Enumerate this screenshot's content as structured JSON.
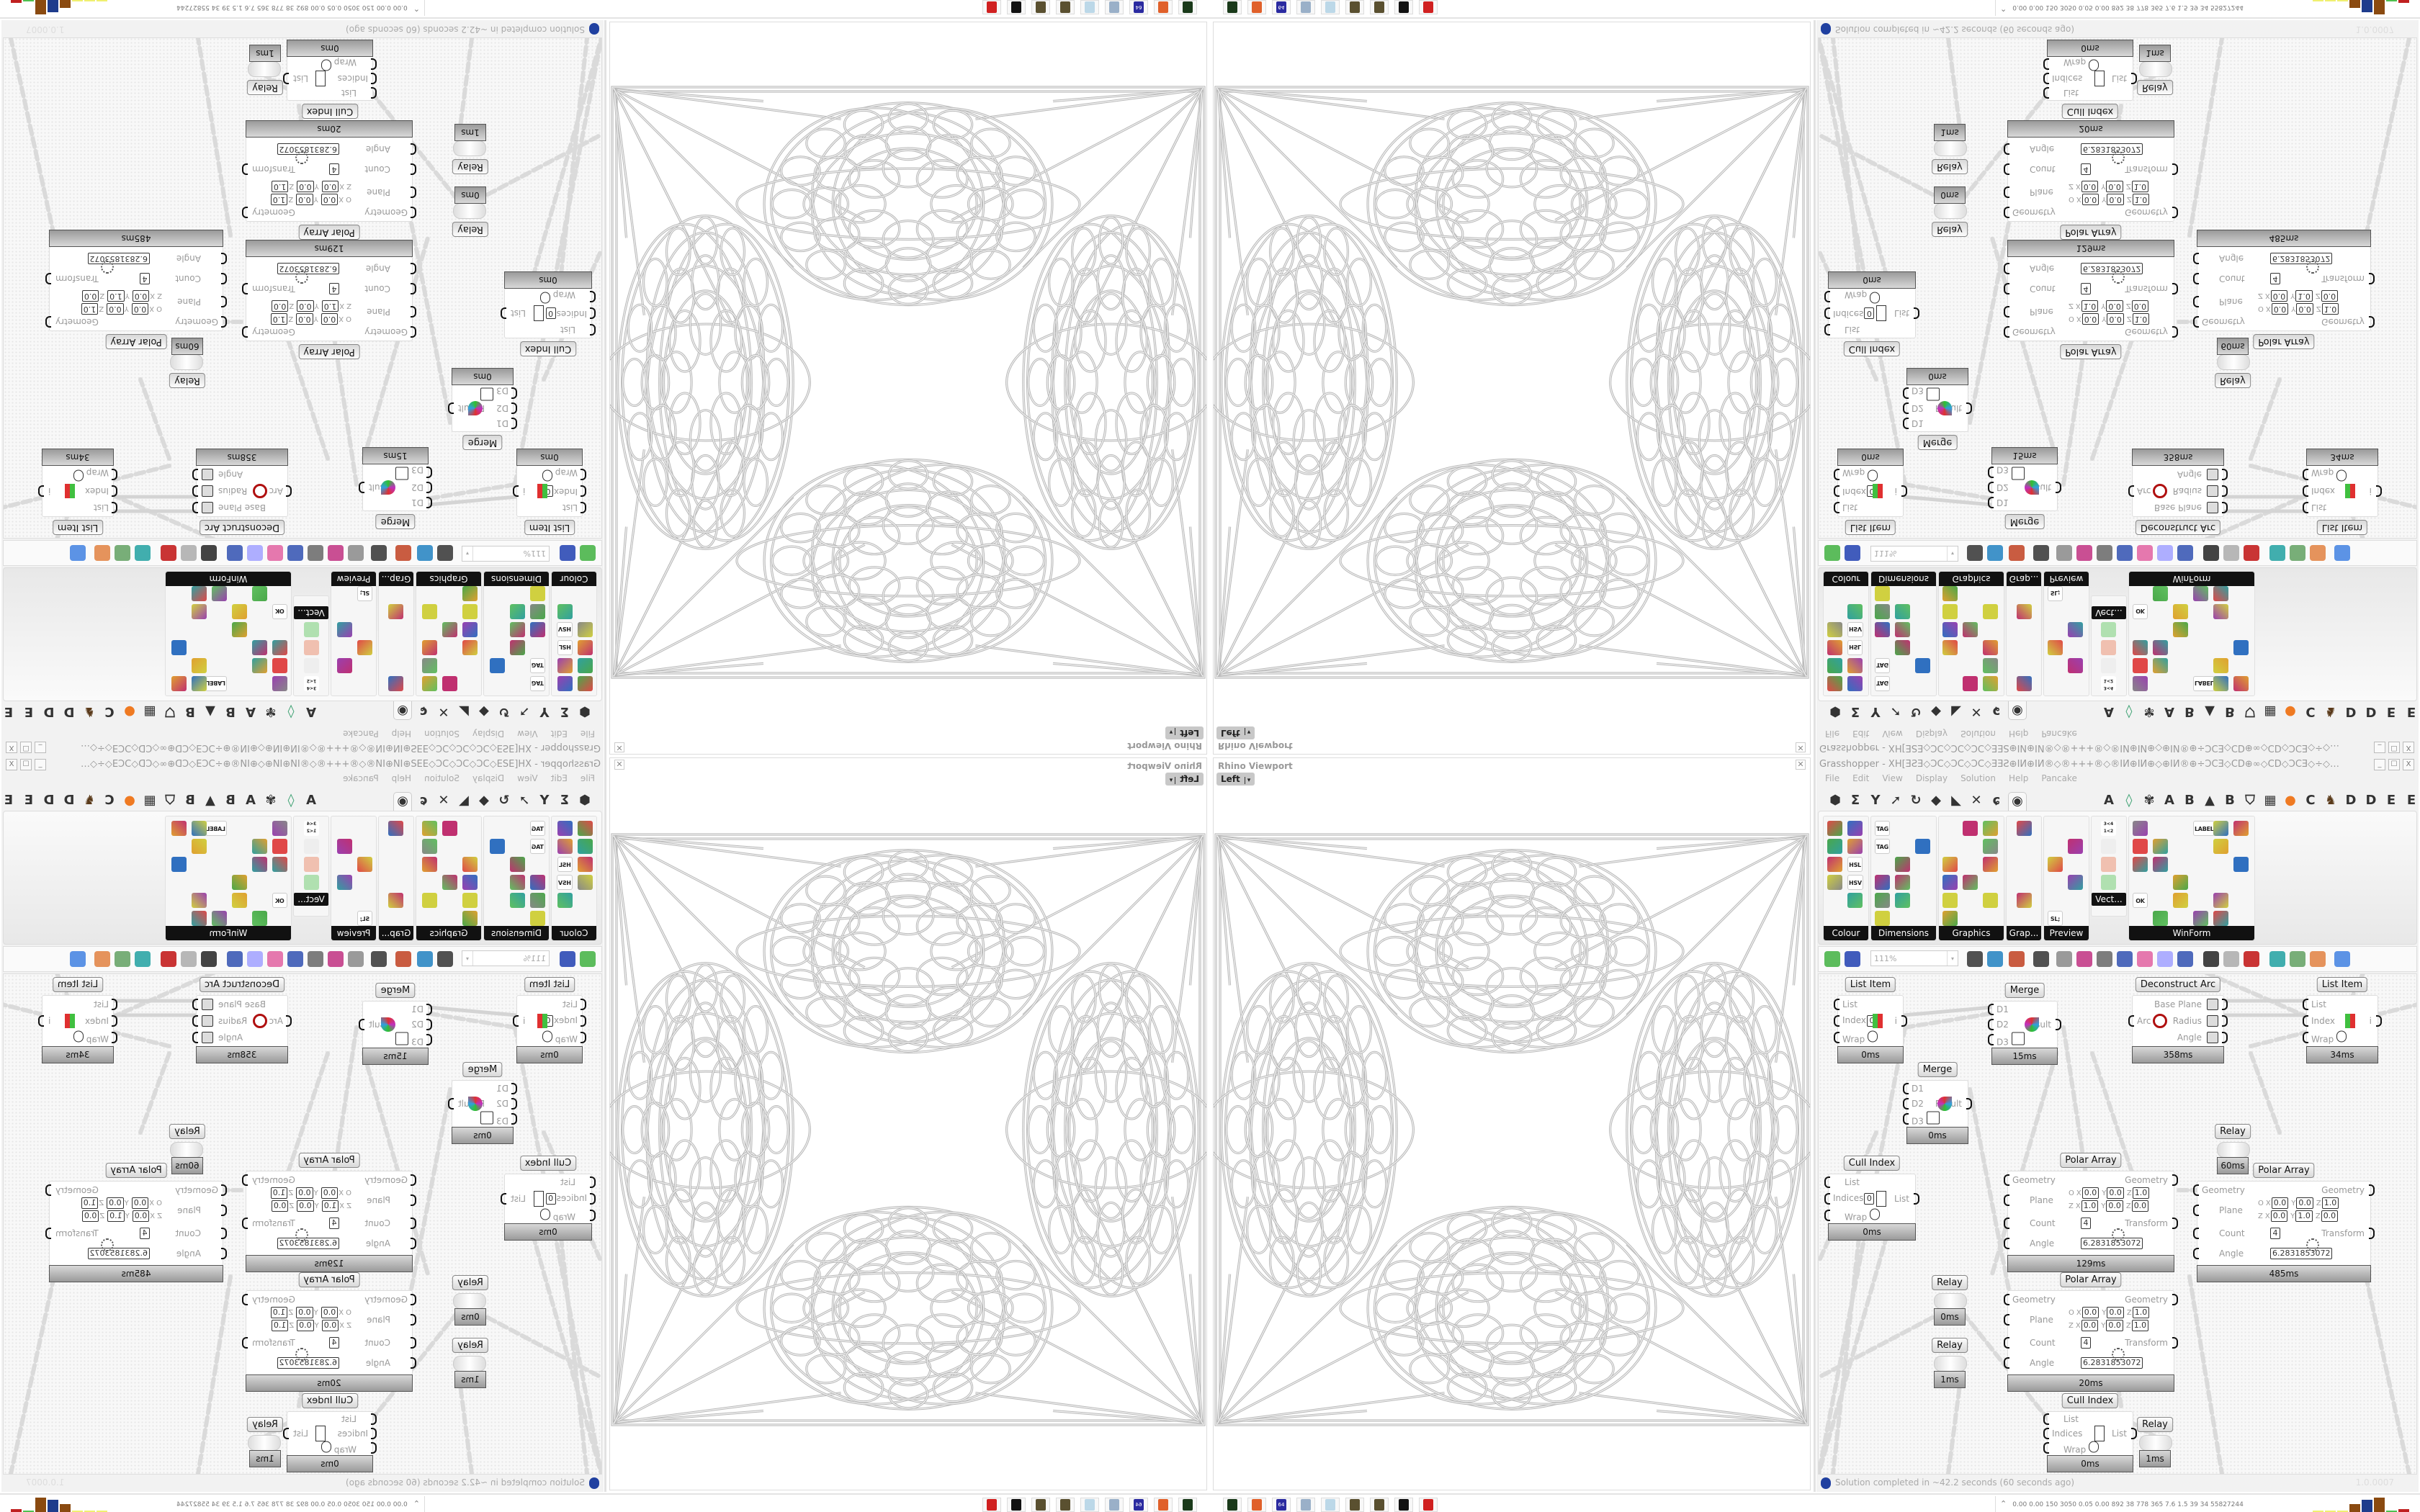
{
  "viewport": {
    "title": "Rhino Viewport",
    "view": "Left",
    "close": "✕",
    "view_arrow": "▾"
  },
  "grasshopper": {
    "title": "Grasshopper - XH[ƎƧƎ◇ƆC◇ƆC◇ƆC◇ƎƎƧ⊕IИ⊕IИ®◇®+++®◇®IИ⊕IИ⊕◇⊕IИ®⊕÷ƆCƎ◇CD⊕∞◇CD◇ƆCƎ◇÷◇®IИ÷◇⊕ƎƎƎ⊞÷ƧƧ÷⊞ƎƎ⊕◇⊕◇CDƎƎ⊞÷C...",
    "window_buttons": [
      "_",
      "☐",
      "X"
    ],
    "menu": [
      "File",
      "Edit",
      "View",
      "Display",
      "Solution",
      "Help",
      "Pancake"
    ],
    "tabs": [
      {
        "icon": "hexagon-icon",
        "glyph": "⬢"
      },
      {
        "icon": "sigma-icon",
        "glyph": "Σ"
      },
      {
        "icon": "fork-icon",
        "glyph": "Y"
      },
      {
        "icon": "arrow-icon",
        "glyph": "➚"
      },
      {
        "icon": "hook-icon",
        "glyph": "↻"
      },
      {
        "icon": "polygon-icon",
        "glyph": "◆"
      },
      {
        "icon": "vector-icon",
        "glyph": "◣"
      },
      {
        "icon": "intersect-icon",
        "glyph": "✕"
      },
      {
        "icon": "spiral-icon",
        "glyph": "ɕ"
      },
      {
        "icon": "eye-icon",
        "glyph": "◉",
        "active": true
      },
      {
        "letter": "A"
      },
      {
        "icon": "crystal-icon",
        "glyph": "◊",
        "color": "#3aa070"
      },
      {
        "icon": "gear-icon",
        "glyph": "✾"
      },
      {
        "letter": "A"
      },
      {
        "letter": "B"
      },
      {
        "icon": "mountain-icon",
        "glyph": "▲"
      },
      {
        "letter": "B"
      },
      {
        "icon": "shield-icon",
        "glyph": "⛉"
      },
      {
        "icon": "grid-icon",
        "glyph": "▦"
      },
      {
        "icon": "orange-circle-icon",
        "glyph": "●",
        "color": "#ef7a22"
      },
      {
        "letter": "C"
      },
      {
        "icon": "bird-icon",
        "glyph": "♞",
        "color": "#5a3a1a"
      },
      {
        "letter": "D"
      },
      {
        "letter": "D"
      },
      {
        "letter": "E"
      },
      {
        "letter": "E"
      },
      {
        "icon": "dotted-square-icon",
        "glyph": "▣"
      },
      {
        "letter": "E"
      }
    ],
    "ribbon": [
      {
        "label": "Colour",
        "cols": 2,
        "icons": [
          "colour-wheel",
          "gradient",
          "cube-red",
          "swatch-gradient",
          "cube-green",
          "HSL",
          "sphere-red",
          "HSV",
          "sphere-red-small",
          "prism",
          "colour-gradient"
        ]
      },
      {
        "label": "Dimensions",
        "cols": 3,
        "icons": [
          "TAG",
          "dimension",
          "angle-dim",
          "TAG",
          "pencil",
          "box-dim",
          "magenta-swatch",
          "fork-dim",
          "bracket-dim",
          "grid-dim",
          "angle-dim-2",
          "leader",
          "segment",
          "chain",
          "arrow-dim",
          "line-dim",
          "triangle-dim"
        ]
      },
      {
        "label": "Graphics",
        "cols": 3,
        "icons": [
          "circle-grey",
          "T-circle",
          "eye-circle",
          "dotted-circle",
          "T-black",
          "square-circle",
          "blur-dot",
          "list-circle",
          "asterisk-circle",
          "ring",
          "link-circle",
          "floppy-mountain",
          "sphere-grey",
          "dotted-ring",
          "floppy-star",
          "gradient-circle",
          "mountain-circle"
        ]
      },
      {
        "label": "Grap...",
        "cols": 1,
        "icons": [
          "histogram",
          "bar-legend",
          "pie-ring",
          "line-graph",
          "photo-stack",
          "area-graph"
        ]
      },
      {
        "label": "Preview",
        "cols": 2,
        "icons": [
          "orange-egg",
          "camera",
          "sphere-window",
          "trees",
          "blue-blobs",
          "blue-heart",
          "red-blobs",
          "green-heart",
          "gradient-slash",
          "hearts",
          "SL;",
          "tree-image"
        ]
      },
      {
        "label": "WinForm",
        "cols": 6,
        "icons": [
          "big-A",
          "list-form",
          "text-form",
          "LABEL",
          "chart-form",
          "grid-form",
          "hatch",
          "track",
          "slider",
          "green-grid",
          "face",
          "panels",
          "check",
          "text-lines",
          "tree-form",
          "pie-form",
          "person",
          "A-plus",
          "bar-form",
          "spinner",
          "packages",
          "arrows",
          "big-A-green",
          "",
          "OK",
          "toggle",
          "green-bar",
          "list-lines",
          "green-window",
          "",
          "calendar",
          "vslider",
          "battery",
          "bars",
          "arrow-right"
        ]
      }
    ],
    "vector_panel": {
      "label": "Vect...",
      "icons": [
        "sort-numbers",
        "path-arrows",
        "red-arrows",
        "green-arrows"
      ],
      "sort_text": "3<4 1<2"
    },
    "toolbar": {
      "zoom": "111%",
      "zoom_arrow": "▾",
      "icons": [
        "new-file-icon",
        "save-icon",
        "zoom-extents-icon",
        "eye-preview-icon",
        "sketch-icon",
        "plug-icon",
        "email-icon",
        "gha-icon",
        "window-icon",
        "search-icon",
        "package-icon",
        "bulb-icon",
        "wires-icon",
        "hand-icon",
        "outline-icon",
        "red-gem-icon",
        "teal-icon",
        "green-icon",
        "half-sphere-icon",
        "blue-sphere-icon"
      ]
    },
    "nodes": [
      {
        "title": "List Item",
        "inputs": [
          "List",
          "Index",
          "Wrap"
        ],
        "index_value": "0",
        "outputs": [
          "i"
        ],
        "timing": "0ms"
      },
      {
        "title": "Merge",
        "inputs": [
          "D1",
          "D2",
          "D3"
        ],
        "outputs": [
          "Result"
        ],
        "timing": "15ms"
      },
      {
        "title": "Deconstruct Arc",
        "inputs": [
          "Arc"
        ],
        "outputs": [
          "Base Plane",
          "Radius",
          "Angle"
        ],
        "timing": "358ms"
      },
      {
        "title": "List Item",
        "inputs": [
          "List",
          "Index",
          "Wrap"
        ],
        "outputs": [
          "i"
        ],
        "timing": "34ms"
      },
      {
        "title": "Merge",
        "inputs": [
          "D1",
          "D2",
          "D3"
        ],
        "outputs": [
          "Result"
        ],
        "timing": "0ms"
      },
      {
        "title": "Relay",
        "timing": "60ms"
      },
      {
        "title": "Cull Index",
        "inputs": [
          "List",
          "Indices",
          "Wrap"
        ],
        "index_value": "0",
        "outputs": [
          "List"
        ],
        "timing": "0ms"
      },
      {
        "title": "Polar Array",
        "inputs": [
          "Geometry",
          "Plane",
          "Count",
          "Angle"
        ],
        "outputs": [
          "Geometry",
          "Transform"
        ],
        "plane": {
          "o": [
            "0.0",
            "0.0",
            "1.0"
          ],
          "z": [
            "1.0",
            "0.0",
            "0.0"
          ]
        },
        "count": "4",
        "angle": "6.2831853072",
        "timing": "129ms"
      },
      {
        "title": "Polar Array",
        "inputs": [
          "Geometry",
          "Plane",
          "Count",
          "Angle"
        ],
        "outputs": [
          "Geometry",
          "Transform"
        ],
        "plane": {
          "o": [
            "0.0",
            "0.0",
            "1.0"
          ],
          "z": [
            "0.0",
            "1.0",
            "0.0"
          ]
        },
        "count": "4",
        "angle": "6.2831853072",
        "timing": "485ms"
      },
      {
        "title": "Relay",
        "timing": "0ms"
      },
      {
        "title": "Polar Array",
        "inputs": [
          "Geometry",
          "Plane",
          "Count",
          "Angle"
        ],
        "outputs": [
          "Geometry",
          "Transform"
        ],
        "plane": {
          "o": [
            "0.0",
            "0.0",
            "1.0"
          ],
          "z": [
            "0.0",
            "0.0",
            "1.0"
          ]
        },
        "count": "4",
        "angle": "6.2831853072",
        "timing": "20ms"
      },
      {
        "title": "Relay",
        "timing": "1ms"
      },
      {
        "title": "Cull Index",
        "inputs": [
          "List",
          "Indices",
          "Wrap"
        ],
        "outputs": [
          "List"
        ],
        "timing": "0ms"
      },
      {
        "title": "Relay",
        "timing": "1ms"
      }
    ],
    "plane_axis": {
      "o": "O",
      "z": "Z",
      "x": "X",
      "y": "Y",
      "zc": "Z"
    },
    "status": {
      "message": "Solution completed in ~42.2 seconds (60 seconds ago)",
      "version": "1.0.0007",
      "icon": "info-icon"
    }
  },
  "taskbar": {
    "apps": [
      {
        "icon": "terminal-app-icon",
        "color": "#1a3a1a"
      },
      {
        "icon": "firefox-icon",
        "color": "#e0602a"
      },
      {
        "icon": "floppy-64-icon",
        "color": "#2a2aa0",
        "label": "64"
      },
      {
        "icon": "scroll-icon",
        "color": "#9ab0c8"
      },
      {
        "icon": "notepad-icon",
        "color": "#bcd8e8"
      },
      {
        "icon": "pinecone-icon",
        "color": "#5a5030"
      },
      {
        "icon": "pinecone-icon",
        "color": "#5a5030"
      },
      {
        "icon": "rhino-icon",
        "color": "#111111"
      },
      {
        "icon": "red-badge-icon",
        "color": "#d02020"
      }
    ],
    "perf_text": "0.00 0.00 150 3050 0.05 0.00 892 38 778 365 7.6 1.5 39 34 55827244",
    "perf_expand": "⌃",
    "perf_bars": [
      {
        "color": "#f0f070",
        "level": 0.05
      },
      {
        "color": "#f0f070",
        "level": 0.05
      },
      {
        "color": "#f0f070",
        "level": 0.05
      },
      {
        "color": "#8a4a10",
        "level": 0.55
      },
      {
        "color": "#1e3c8c",
        "level": 0.85
      },
      {
        "color": "#8a4a10",
        "level": 1.0
      },
      {
        "color": "#50c050",
        "level": 0.05
      },
      {
        "color": "#c02020",
        "level": 0.2
      }
    ]
  }
}
